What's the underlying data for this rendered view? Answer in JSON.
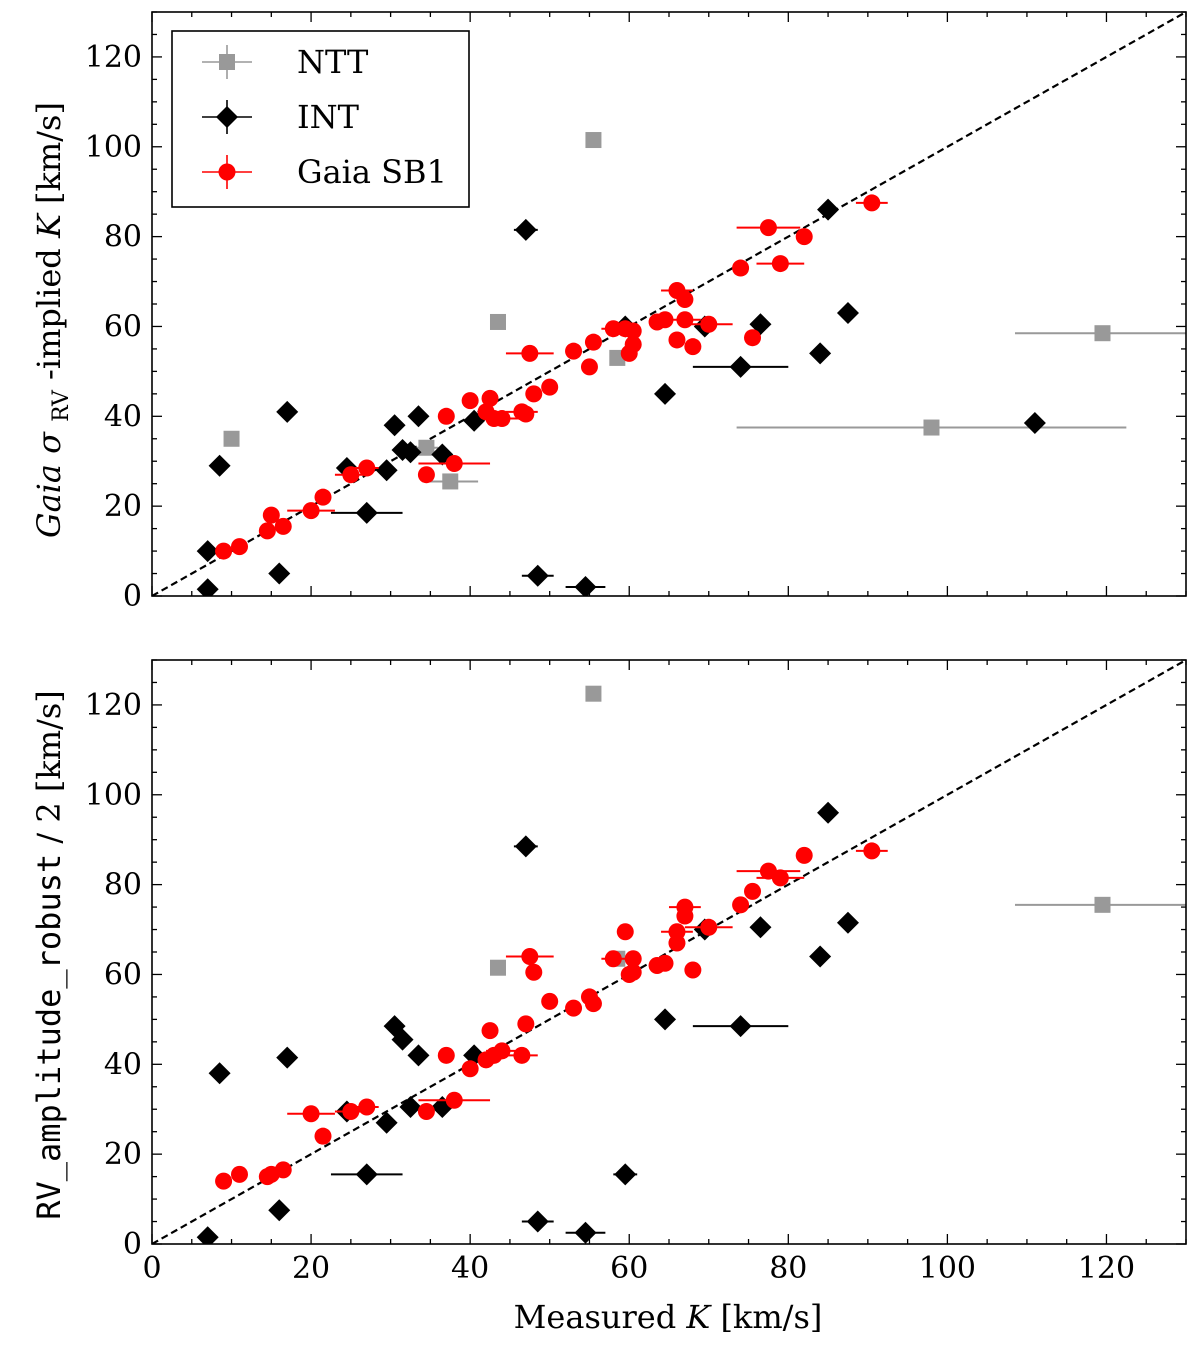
{
  "legend": {
    "entries": [
      {
        "label": "NTT",
        "color": "#999999",
        "marker": "square"
      },
      {
        "label": "INT",
        "color": "#000000",
        "marker": "diamond"
      },
      {
        "label": "Gaia SB1",
        "color": "#ff0000",
        "marker": "circle"
      }
    ]
  },
  "chart_data": [
    {
      "type": "scatter",
      "panel": "top",
      "ylabel_parts": {
        "italic": "Gaia",
        "sigma": "σ",
        "sub": "RV",
        "rest": "-implied ",
        "var": "K",
        "unit": " [km/s]"
      },
      "xlabel": "",
      "xlim": [
        0,
        130
      ],
      "ylim": [
        0,
        130
      ],
      "xticks": [
        0,
        20,
        40,
        60,
        80,
        100,
        120
      ],
      "yticks": [
        0,
        20,
        40,
        60,
        80,
        100,
        120
      ],
      "reference_line": "y = x",
      "series": [
        {
          "name": "NTT",
          "color": "#999999",
          "marker": "square",
          "points": [
            {
              "x": 10,
              "y": 35
            },
            {
              "x": 34.5,
              "y": 33,
              "xerr": 1.5
            },
            {
              "x": 37.5,
              "y": 25.5,
              "xerr": 3.5
            },
            {
              "x": 43.5,
              "y": 61
            },
            {
              "x": 55.5,
              "y": 101.5
            },
            {
              "x": 58.5,
              "y": 53
            },
            {
              "x": 98,
              "y": 37.5,
              "xerr": 24.5
            },
            {
              "x": 119.5,
              "y": 58.5,
              "xerr": 11
            }
          ]
        },
        {
          "name": "INT",
          "color": "#000000",
          "marker": "diamond",
          "points": [
            {
              "x": 7,
              "y": 1.5
            },
            {
              "x": 7,
              "y": 10
            },
            {
              "x": 8.5,
              "y": 29
            },
            {
              "x": 16,
              "y": 5
            },
            {
              "x": 17,
              "y": 41
            },
            {
              "x": 24.5,
              "y": 28.5
            },
            {
              "x": 27,
              "y": 18.5,
              "xerr": 4.5
            },
            {
              "x": 29.5,
              "y": 28
            },
            {
              "x": 30.5,
              "y": 38
            },
            {
              "x": 31.5,
              "y": 32.5
            },
            {
              "x": 32.5,
              "y": 32
            },
            {
              "x": 33.5,
              "y": 40
            },
            {
              "x": 36.5,
              "y": 31.5
            },
            {
              "x": 40.5,
              "y": 39
            },
            {
              "x": 47,
              "y": 81.5,
              "xerr": 1.5
            },
            {
              "x": 48.5,
              "y": 4.5,
              "xerr": 2
            },
            {
              "x": 54.5,
              "y": 2,
              "xerr": 2.5
            },
            {
              "x": 59.5,
              "y": 60
            },
            {
              "x": 64.5,
              "y": 45
            },
            {
              "x": 69.5,
              "y": 60
            },
            {
              "x": 74,
              "y": 51,
              "xerr": 6
            },
            {
              "x": 76.5,
              "y": 60.5
            },
            {
              "x": 84,
              "y": 54
            },
            {
              "x": 85,
              "y": 86
            },
            {
              "x": 87.5,
              "y": 63
            },
            {
              "x": 111,
              "y": 38.5
            }
          ]
        },
        {
          "name": "Gaia SB1",
          "color": "#ff0000",
          "marker": "circle",
          "points": [
            {
              "x": 9,
              "y": 10
            },
            {
              "x": 11,
              "y": 11
            },
            {
              "x": 14.5,
              "y": 14.5
            },
            {
              "x": 15,
              "y": 18
            },
            {
              "x": 16.5,
              "y": 15.5
            },
            {
              "x": 20,
              "y": 19,
              "xerr": 3
            },
            {
              "x": 21.5,
              "y": 22
            },
            {
              "x": 25,
              "y": 27,
              "xerr": 2
            },
            {
              "x": 27,
              "y": 28.5,
              "xerr": 1.5
            },
            {
              "x": 34.5,
              "y": 27
            },
            {
              "x": 37,
              "y": 40
            },
            {
              "x": 38,
              "y": 29.5,
              "xerr": 4.5
            },
            {
              "x": 40,
              "y": 43.5
            },
            {
              "x": 42,
              "y": 41
            },
            {
              "x": 42.5,
              "y": 44
            },
            {
              "x": 43,
              "y": 39.5
            },
            {
              "x": 44,
              "y": 39.5,
              "xerr": 2
            },
            {
              "x": 46.5,
              "y": 41,
              "xerr": 2
            },
            {
              "x": 47,
              "y": 40.5
            },
            {
              "x": 47.5,
              "y": 54,
              "xerr": 3
            },
            {
              "x": 48,
              "y": 45
            },
            {
              "x": 50,
              "y": 46.5
            },
            {
              "x": 53,
              "y": 54.5
            },
            {
              "x": 55,
              "y": 51
            },
            {
              "x": 55.5,
              "y": 56.5
            },
            {
              "x": 58,
              "y": 59.5,
              "xerr": 1.5
            },
            {
              "x": 59.5,
              "y": 59.5
            },
            {
              "x": 60,
              "y": 54
            },
            {
              "x": 60.5,
              "y": 56
            },
            {
              "x": 60.5,
              "y": 59
            },
            {
              "x": 63.5,
              "y": 61
            },
            {
              "x": 64.5,
              "y": 61.5
            },
            {
              "x": 66,
              "y": 57
            },
            {
              "x": 66,
              "y": 68,
              "xerr": 2
            },
            {
              "x": 67,
              "y": 61.5,
              "xerr": 2
            },
            {
              "x": 67,
              "y": 66
            },
            {
              "x": 68,
              "y": 55.5
            },
            {
              "x": 70,
              "y": 60.5,
              "xerr": 3
            },
            {
              "x": 74,
              "y": 73
            },
            {
              "x": 75.5,
              "y": 57.5
            },
            {
              "x": 77.5,
              "y": 82,
              "xerr": 4
            },
            {
              "x": 79,
              "y": 74,
              "xerr": 3
            },
            {
              "x": 82,
              "y": 80
            },
            {
              "x": 90.5,
              "y": 87.5,
              "xerr": 2
            }
          ]
        }
      ]
    },
    {
      "type": "scatter",
      "panel": "bottom",
      "ylabel_parts": {
        "mono": "RV_amplitude_robust",
        "rest": " / 2 [km/s]"
      },
      "xlabel_parts": {
        "plain": "Measured ",
        "var": "K",
        "unit": " [km/s]"
      },
      "xlim": [
        0,
        130
      ],
      "ylim": [
        0,
        130
      ],
      "xticks": [
        0,
        20,
        40,
        60,
        80,
        100,
        120
      ],
      "yticks": [
        0,
        20,
        40,
        60,
        80,
        100,
        120
      ],
      "reference_line": "y = x",
      "series": [
        {
          "name": "NTT",
          "color": "#999999",
          "marker": "square",
          "points": [
            {
              "x": 43.5,
              "y": 61.5
            },
            {
              "x": 55.5,
              "y": 122.5
            },
            {
              "x": 58.5,
              "y": 63.5
            },
            {
              "x": 119.5,
              "y": 75.5,
              "xerr": 11
            }
          ]
        },
        {
          "name": "INT",
          "color": "#000000",
          "marker": "diamond",
          "points": [
            {
              "x": 7,
              "y": 1.5
            },
            {
              "x": 8.5,
              "y": 38
            },
            {
              "x": 16,
              "y": 7.5
            },
            {
              "x": 17,
              "y": 41.5
            },
            {
              "x": 24.5,
              "y": 29.5
            },
            {
              "x": 27,
              "y": 15.5,
              "xerr": 4.5
            },
            {
              "x": 29.5,
              "y": 27
            },
            {
              "x": 30.5,
              "y": 48.5
            },
            {
              "x": 31.5,
              "y": 45.5
            },
            {
              "x": 32.5,
              "y": 30.5
            },
            {
              "x": 33.5,
              "y": 42
            },
            {
              "x": 36.5,
              "y": 30.5
            },
            {
              "x": 40.5,
              "y": 42
            },
            {
              "x": 47,
              "y": 88.5,
              "xerr": 1.5
            },
            {
              "x": 48.5,
              "y": 5,
              "xerr": 2
            },
            {
              "x": 54.5,
              "y": 2.5,
              "xerr": 2.5
            },
            {
              "x": 59.5,
              "y": 15.5,
              "xerr": 1.5
            },
            {
              "x": 64.5,
              "y": 50
            },
            {
              "x": 69.5,
              "y": 70
            },
            {
              "x": 74,
              "y": 48.5,
              "xerr": 6
            },
            {
              "x": 76.5,
              "y": 70.5
            },
            {
              "x": 84,
              "y": 64
            },
            {
              "x": 85,
              "y": 96
            },
            {
              "x": 87.5,
              "y": 71.5
            }
          ]
        },
        {
          "name": "Gaia SB1",
          "color": "#ff0000",
          "marker": "circle",
          "points": [
            {
              "x": 9,
              "y": 14
            },
            {
              "x": 11,
              "y": 15.5
            },
            {
              "x": 14.5,
              "y": 15
            },
            {
              "x": 15,
              "y": 15.5
            },
            {
              "x": 16.5,
              "y": 16.5
            },
            {
              "x": 20,
              "y": 29,
              "xerr": 3
            },
            {
              "x": 21.5,
              "y": 24
            },
            {
              "x": 25,
              "y": 29.5,
              "xerr": 2
            },
            {
              "x": 27,
              "y": 30.5,
              "xerr": 1.5
            },
            {
              "x": 34.5,
              "y": 29.5
            },
            {
              "x": 37,
              "y": 42
            },
            {
              "x": 38,
              "y": 32,
              "xerr": 4.5
            },
            {
              "x": 40,
              "y": 39
            },
            {
              "x": 42,
              "y": 41
            },
            {
              "x": 42.5,
              "y": 47.5
            },
            {
              "x": 43,
              "y": 42
            },
            {
              "x": 44,
              "y": 43,
              "xerr": 2
            },
            {
              "x": 46.5,
              "y": 42,
              "xerr": 2
            },
            {
              "x": 47,
              "y": 49
            },
            {
              "x": 47.5,
              "y": 64,
              "xerr": 3
            },
            {
              "x": 48,
              "y": 60.5
            },
            {
              "x": 50,
              "y": 54
            },
            {
              "x": 53,
              "y": 52.5
            },
            {
              "x": 55,
              "y": 55
            },
            {
              "x": 55.5,
              "y": 53.5
            },
            {
              "x": 58,
              "y": 63.5,
              "xerr": 1.5
            },
            {
              "x": 59.5,
              "y": 69.5
            },
            {
              "x": 60,
              "y": 60
            },
            {
              "x": 60.5,
              "y": 60.5
            },
            {
              "x": 60.5,
              "y": 63.5
            },
            {
              "x": 63.5,
              "y": 62
            },
            {
              "x": 64.5,
              "y": 62.5
            },
            {
              "x": 66,
              "y": 67
            },
            {
              "x": 66,
              "y": 69.5,
              "xerr": 2
            },
            {
              "x": 67,
              "y": 75,
              "xerr": 2
            },
            {
              "x": 67,
              "y": 73
            },
            {
              "x": 68,
              "y": 61
            },
            {
              "x": 70,
              "y": 70.5,
              "xerr": 3
            },
            {
              "x": 74,
              "y": 75.5
            },
            {
              "x": 75.5,
              "y": 78.5
            },
            {
              "x": 77.5,
              "y": 83,
              "xerr": 4
            },
            {
              "x": 79,
              "y": 81.5,
              "xerr": 3
            },
            {
              "x": 82,
              "y": 86.5
            },
            {
              "x": 90.5,
              "y": 87.5,
              "xerr": 2
            }
          ]
        }
      ]
    }
  ]
}
